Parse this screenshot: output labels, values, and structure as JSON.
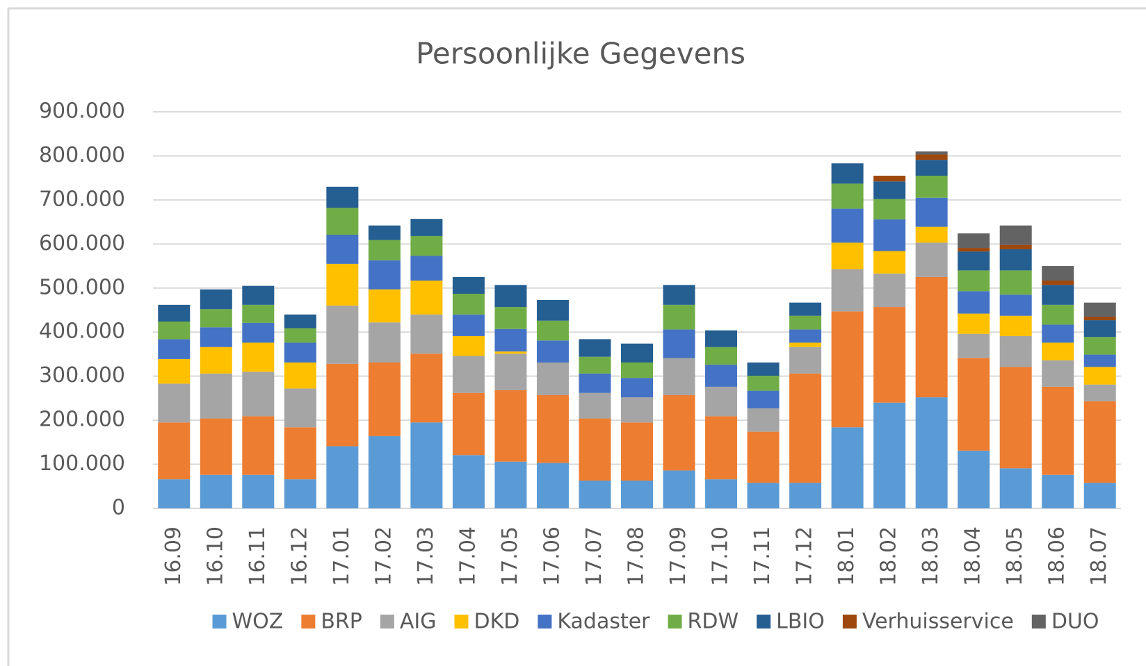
{
  "chart_data": {
    "type": "stacked_bar",
    "title": "Persoonlijke Gegevens",
    "categories": [
      "16.09",
      "16.10",
      "16.11",
      "16.12",
      "17.01",
      "17.02",
      "17.03",
      "17.04",
      "17.05",
      "17.06",
      "17.07",
      "17.08",
      "17.09",
      "17.10",
      "17.11",
      "17.12",
      "18.01",
      "18.02",
      "18.03",
      "18.04",
      "18.05",
      "18.06",
      "18.07"
    ],
    "series": [
      {
        "name": "WOZ",
        "color": "#5b9bd5",
        "values": [
          66000,
          76000,
          76000,
          66000,
          141000,
          164000,
          195000,
          121000,
          106000,
          103000,
          63000,
          63000,
          86000,
          66000,
          58000,
          58000,
          184000,
          240000,
          252000,
          131000,
          91000,
          76000,
          58000
        ]
      },
      {
        "name": "BRP",
        "color": "#ed7d31",
        "values": [
          129000,
          128000,
          133000,
          118000,
          187000,
          167000,
          156000,
          141000,
          162000,
          154000,
          141000,
          132000,
          171000,
          143000,
          116000,
          248000,
          263000,
          217000,
          273000,
          210000,
          230000,
          200000,
          185000
        ]
      },
      {
        "name": "AIG",
        "color": "#a5a5a5",
        "values": [
          88000,
          102000,
          101000,
          88000,
          132000,
          91000,
          89000,
          84000,
          83000,
          74000,
          58000,
          57000,
          84000,
          67000,
          53000,
          60000,
          96000,
          76000,
          78000,
          55000,
          70000,
          60000,
          38000
        ]
      },
      {
        "name": "DKD",
        "color": "#ffc000",
        "values": [
          56000,
          60000,
          66000,
          59000,
          95000,
          75000,
          77000,
          45000,
          5000,
          0,
          0,
          0,
          0,
          0,
          0,
          10000,
          60000,
          51000,
          36000,
          46000,
          46000,
          40000,
          40000
        ]
      },
      {
        "name": "Kadaster",
        "color": "#4472c4",
        "values": [
          45000,
          45000,
          45000,
          45000,
          66000,
          66000,
          56000,
          49000,
          51000,
          50000,
          44000,
          44000,
          65000,
          50000,
          40000,
          30000,
          77000,
          72000,
          66000,
          51000,
          48000,
          41000,
          28000
        ]
      },
      {
        "name": "RDW",
        "color": "#70ad47",
        "values": [
          40000,
          41000,
          41000,
          33000,
          61000,
          46000,
          45000,
          47000,
          50000,
          45000,
          38000,
          35000,
          56000,
          40000,
          34000,
          31000,
          57000,
          46000,
          50000,
          47000,
          55000,
          45000,
          40000
        ]
      },
      {
        "name": "LBIO",
        "color": "#255e91",
        "values": [
          38000,
          45000,
          43000,
          31000,
          48000,
          33000,
          39000,
          38000,
          50000,
          47000,
          40000,
          43000,
          45000,
          38000,
          30000,
          30000,
          46000,
          40000,
          36000,
          43000,
          48000,
          45000,
          38000
        ]
      },
      {
        "name": "Verhuisservice",
        "color": "#9e480e",
        "values": [
          0,
          0,
          0,
          0,
          0,
          0,
          0,
          0,
          0,
          0,
          0,
          0,
          0,
          0,
          0,
          0,
          0,
          13000,
          12000,
          8000,
          10000,
          10000,
          8000
        ]
      },
      {
        "name": "DUO",
        "color": "#636363",
        "values": [
          0,
          0,
          0,
          0,
          0,
          0,
          0,
          0,
          0,
          0,
          0,
          0,
          0,
          0,
          0,
          0,
          0,
          0,
          7000,
          33000,
          44000,
          33000,
          32000
        ]
      }
    ],
    "ylim": [
      0,
      900000
    ],
    "yticks": [
      0,
      {
        "value": 100000,
        "label": "100.000"
      },
      {
        "value": 200000,
        "label": "200.000"
      },
      {
        "value": 300000,
        "label": "300.000"
      },
      {
        "value": 400000,
        "label": "400.000"
      },
      {
        "value": 500000,
        "label": "500.000"
      },
      {
        "value": 600000,
        "label": "600.000"
      },
      {
        "value": 700000,
        "label": "700.000"
      },
      {
        "value": 800000,
        "label": "800.000"
      },
      {
        "value": 900000,
        "label": "900.000"
      }
    ],
    "grid": true,
    "legend": "bottom"
  }
}
